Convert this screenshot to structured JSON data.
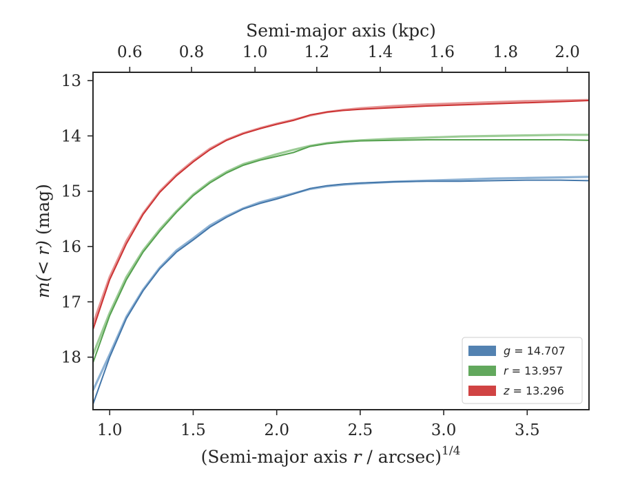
{
  "chart_data": {
    "type": "line",
    "xlabel_bottom": "(Semi-major axis r / arcsec)^1/4",
    "xlabel_bottom_main": "(Semi-major axis ",
    "xlabel_bottom_var": "r",
    "xlabel_bottom_tail": " / arcsec)",
    "xlabel_bottom_exp": "1/4",
    "xlabel_top": "Semi-major axis (kpc)",
    "ylabel": "m(< r) (mag)",
    "ylabel_math": "m(< r)",
    "ylabel_unit": " (mag)",
    "xlim": [
      0.9,
      3.87
    ],
    "ylim_inverted": [
      18.95,
      12.85
    ],
    "xticks": [
      1.0,
      1.5,
      2.0,
      2.5,
      3.0,
      3.5
    ],
    "xtick_labels": [
      "1.0",
      "1.5",
      "2.0",
      "2.5",
      "3.0",
      "3.5"
    ],
    "top_ticks_kpc": [
      0.6,
      0.8,
      1.0,
      1.2,
      1.4,
      1.6,
      1.8,
      2.0
    ],
    "top_tick_positions": [
      1.12,
      1.49,
      1.87,
      2.24,
      2.62,
      2.99,
      3.37,
      3.74
    ],
    "top_tick_labels": [
      "0.6",
      "0.8",
      "1.0",
      "1.2",
      "1.4",
      "1.6",
      "1.8",
      "2.0"
    ],
    "yticks": [
      13,
      14,
      15,
      16,
      17,
      18
    ],
    "ytick_labels": [
      "13",
      "14",
      "15",
      "16",
      "17",
      "18"
    ],
    "grid": false,
    "legend_position": "lower right",
    "series": [
      {
        "name": "g = 14.707",
        "label_var": "g",
        "label_value": " = 14.707",
        "color": "#4477aa",
        "fit_color": "#8eb2d4",
        "x": [
          0.9,
          1.0,
          1.1,
          1.2,
          1.3,
          1.4,
          1.5,
          1.6,
          1.7,
          1.8,
          1.9,
          2.0,
          2.1,
          2.2,
          2.3,
          2.4,
          2.5,
          2.7,
          2.9,
          3.1,
          3.3,
          3.5,
          3.7,
          3.87
        ],
        "values": [
          18.85,
          18.0,
          17.3,
          16.8,
          16.4,
          16.1,
          15.88,
          15.65,
          15.47,
          15.32,
          15.22,
          15.14,
          15.05,
          14.95,
          14.9,
          14.87,
          14.85,
          14.83,
          14.82,
          14.82,
          14.81,
          14.8,
          14.8,
          14.81
        ],
        "fit": [
          18.6,
          17.95,
          17.27,
          16.78,
          16.38,
          16.07,
          15.85,
          15.62,
          15.45,
          15.31,
          15.2,
          15.12,
          15.04,
          14.96,
          14.91,
          14.88,
          14.86,
          14.83,
          14.81,
          14.79,
          14.77,
          14.76,
          14.75,
          14.74
        ]
      },
      {
        "name": "r = 13.957",
        "label_var": "r",
        "label_value": " = 13.957",
        "color": "#55a14f",
        "fit_color": "#9ccc96",
        "x": [
          0.9,
          1.0,
          1.1,
          1.2,
          1.3,
          1.4,
          1.5,
          1.6,
          1.7,
          1.8,
          1.9,
          2.0,
          2.1,
          2.2,
          2.3,
          2.4,
          2.5,
          2.7,
          2.9,
          3.1,
          3.3,
          3.5,
          3.7,
          3.87
        ],
        "values": [
          18.1,
          17.25,
          16.6,
          16.1,
          15.72,
          15.38,
          15.08,
          14.85,
          14.67,
          14.53,
          14.44,
          14.37,
          14.3,
          14.19,
          14.14,
          14.11,
          14.09,
          14.08,
          14.07,
          14.07,
          14.07,
          14.07,
          14.07,
          14.08
        ],
        "fit": [
          17.95,
          17.2,
          16.55,
          16.07,
          15.69,
          15.36,
          15.06,
          14.83,
          14.65,
          14.51,
          14.42,
          14.33,
          14.25,
          14.18,
          14.13,
          14.1,
          14.08,
          14.05,
          14.03,
          14.01,
          14.0,
          13.99,
          13.98,
          13.98
        ]
      },
      {
        "name": "z = 13.296",
        "label_var": "z",
        "label_value": " = 13.296",
        "color": "#cc3333",
        "fit_color": "#e69494",
        "x": [
          0.9,
          1.0,
          1.1,
          1.2,
          1.3,
          1.4,
          1.5,
          1.6,
          1.7,
          1.8,
          1.9,
          2.0,
          2.1,
          2.2,
          2.3,
          2.4,
          2.5,
          2.7,
          2.9,
          3.1,
          3.3,
          3.5,
          3.7,
          3.87
        ],
        "values": [
          17.5,
          16.6,
          15.95,
          15.42,
          15.02,
          14.72,
          14.47,
          14.25,
          14.08,
          13.96,
          13.87,
          13.79,
          13.72,
          13.62,
          13.57,
          13.54,
          13.52,
          13.49,
          13.46,
          13.44,
          13.42,
          13.4,
          13.38,
          13.36
        ],
        "fit": [
          17.4,
          16.55,
          15.9,
          15.4,
          15.0,
          14.7,
          14.45,
          14.23,
          14.07,
          13.95,
          13.86,
          13.78,
          13.71,
          13.63,
          13.57,
          13.53,
          13.5,
          13.46,
          13.43,
          13.41,
          13.39,
          13.37,
          13.36,
          13.35
        ]
      }
    ]
  }
}
